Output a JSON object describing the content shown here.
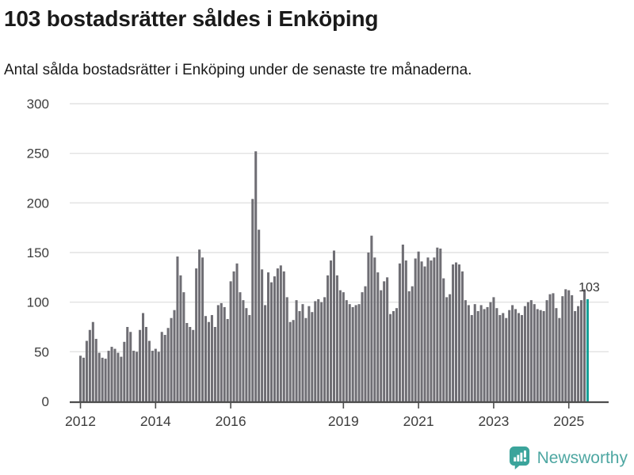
{
  "chart_data": {
    "type": "bar",
    "title": "103 bostadsrätter såldes i Enköping",
    "subtitle": "Antal sålda bostadsrätter i Enköping under de senaste tre månaderna.",
    "start": "2012-01",
    "frequency": "monthly",
    "values": [
      46,
      44,
      61,
      72,
      80,
      63,
      49,
      44,
      43,
      51,
      55,
      53,
      49,
      45,
      60,
      75,
      70,
      51,
      50,
      72,
      89,
      75,
      61,
      51,
      53,
      50,
      70,
      67,
      74,
      84,
      92,
      146,
      127,
      110,
      79,
      75,
      72,
      134,
      153,
      145,
      86,
      80,
      87,
      75,
      97,
      99,
      95,
      83,
      121,
      131,
      139,
      110,
      102,
      94,
      87,
      204,
      252,
      173,
      133,
      97,
      130,
      120,
      126,
      134,
      137,
      131,
      105,
      80,
      82,
      102,
      91,
      98,
      84,
      96,
      90,
      101,
      103,
      100,
      105,
      127,
      142,
      152,
      127,
      112,
      110,
      102,
      98,
      95,
      97,
      98,
      110,
      116,
      150,
      167,
      145,
      130,
      112,
      121,
      125,
      88,
      91,
      94,
      139,
      158,
      142,
      111,
      116,
      144,
      151,
      141,
      136,
      145,
      142,
      145,
      155,
      154,
      124,
      105,
      108,
      138,
      140,
      138,
      131,
      102,
      97,
      87,
      98,
      91,
      97,
      93,
      95,
      100,
      105,
      94,
      87,
      89,
      84,
      92,
      97,
      93,
      89,
      87,
      96,
      100,
      102,
      98,
      93,
      92,
      91,
      102,
      108,
      109,
      94,
      84,
      106,
      113,
      112,
      107,
      91,
      96,
      102,
      113,
      103
    ],
    "highlight_last_value": true,
    "last_value_label": "103",
    "ylim": [
      0,
      300
    ],
    "yticks": [
      0,
      50,
      100,
      150,
      200,
      250,
      300
    ],
    "xticks": [
      {
        "label": "2012",
        "index": 0
      },
      {
        "label": "2014",
        "index": 24
      },
      {
        "label": "2016",
        "index": 48
      },
      {
        "label": "2019",
        "index": 84
      },
      {
        "label": "2021",
        "index": 108
      },
      {
        "label": "2023",
        "index": 132
      },
      {
        "label": "2025",
        "index": 156
      }
    ],
    "grid": true,
    "legend": "none",
    "colors": {
      "bar": "#6f6e74",
      "highlight": "#14a096",
      "gridline": "#e2e2e2",
      "axis": "#4d4d4d",
      "tick_label": "#3d3d3d",
      "annotation": "#333333"
    }
  },
  "branding": {
    "name": "Newsworthy",
    "text_color": "#4ea7a2",
    "icon_color": "#3ba49b"
  }
}
